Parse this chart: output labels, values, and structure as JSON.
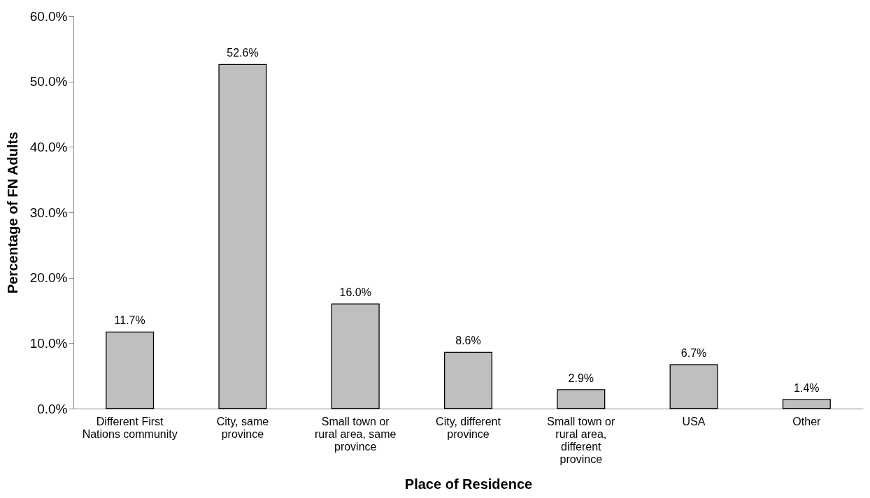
{
  "chart_data": {
    "type": "bar",
    "xlabel": "Place of Residence",
    "ylabel": "Percentage of FN Adults",
    "categories": [
      "Different First Nations community",
      "City, same province",
      "Small town or rural area, same province",
      "City, different province",
      "Small town or rural area, different province",
      "USA",
      "Other"
    ],
    "values": [
      11.7,
      52.6,
      16.0,
      8.6,
      2.9,
      6.7,
      1.4
    ],
    "value_labels": [
      "11.7%",
      "52.6%",
      "16.0%",
      "8.6%",
      "2.9%",
      "6.7%",
      "1.4%"
    ],
    "color": "#bfbfbf",
    "ylim": [
      0,
      60
    ],
    "yticks": [
      {
        "value": 0,
        "label": "0.0%"
      },
      {
        "value": 10,
        "label": "10.0%"
      },
      {
        "value": 20,
        "label": "20.0%"
      },
      {
        "value": 30,
        "label": "30.0%"
      },
      {
        "value": 40,
        "label": "40.0%"
      },
      {
        "value": 50,
        "label": "50.0%"
      },
      {
        "value": 60,
        "label": "60.0%"
      }
    ],
    "grid": false
  }
}
